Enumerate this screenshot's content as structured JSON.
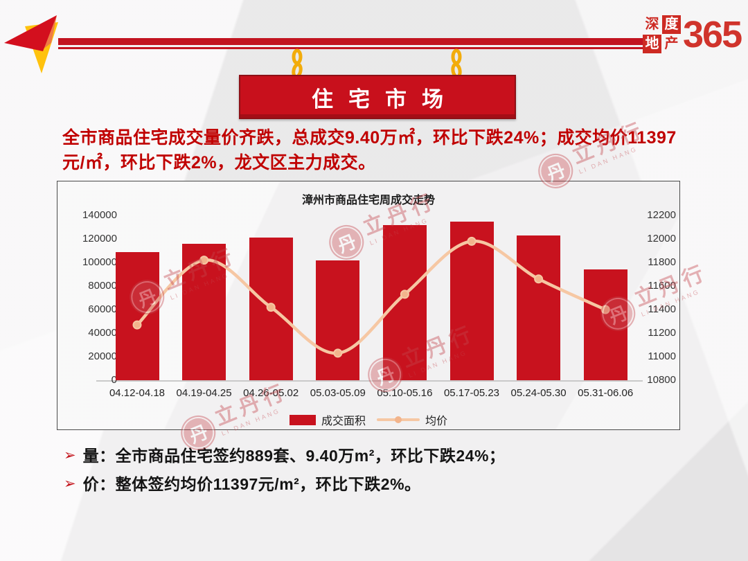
{
  "header": {
    "logo": {
      "chars": [
        "深",
        "度",
        "地",
        "产"
      ],
      "number": "365"
    }
  },
  "banner": {
    "title": "住宅市场"
  },
  "summary": "全市商品住宅成交量价齐跌，总成交9.40万㎡，环比下跌24%；成交均价11397元/㎡，环比下跌2%，龙文区主力成交。",
  "chart_data": {
    "type": "bar",
    "title": "漳州市商品住宅周成交走势",
    "categories": [
      "04.12-04.18",
      "04.19-04.25",
      "04.26-05.02",
      "05.03-05.09",
      "05.10-05.16",
      "05.17-05.23",
      "05.24-05.30",
      "05.31-06.06"
    ],
    "series": [
      {
        "name": "成交面积",
        "type": "bar",
        "axis": "left",
        "color": "#c8121e",
        "values": [
          109000,
          116000,
          121000,
          102000,
          132000,
          135000,
          123000,
          94000
        ]
      },
      {
        "name": "均价",
        "type": "line",
        "axis": "right",
        "color": "#f6c7a3",
        "marker_color": "#f2b48c",
        "values": [
          11270,
          11820,
          11420,
          11030,
          11530,
          11980,
          11660,
          11400
        ]
      }
    ],
    "left_axis": {
      "min": 0,
      "max": 140000,
      "step": 20000
    },
    "right_axis": {
      "min": 10800,
      "max": 12200,
      "step": 200
    },
    "legend_position": "bottom",
    "grid": false
  },
  "bullets": [
    "量：全市商品住宅签约889套、9.40万m²，环比下跌24%；",
    "价：整体签约均价11397元/m²，环比下跌2%。"
  ],
  "bullet_marker": "➢",
  "watermark": {
    "seal": "丹",
    "text": "立丹行",
    "sub": "LI DAN HANG"
  },
  "colors": {
    "accent_red": "#c8121e",
    "banner_red": "#c8101c",
    "summary_red": "#c00000",
    "line_salmon": "#f6c7a3",
    "chain_yellow": "#f2ac0b"
  }
}
